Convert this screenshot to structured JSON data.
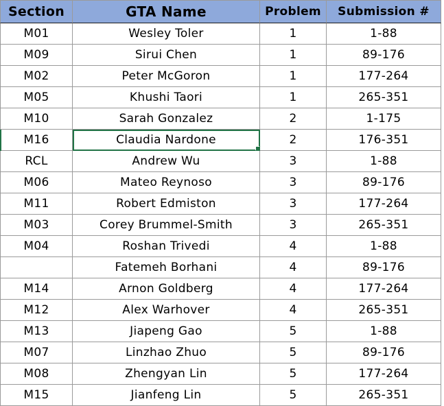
{
  "columns": {
    "section": "Section",
    "gta_name": "GTA Name",
    "problem": "Problem",
    "submission": "Submission #"
  },
  "rows": [
    {
      "section": "M01",
      "gta_name": "Wesley Toler",
      "problem": "1",
      "submission": "1-88"
    },
    {
      "section": "M09",
      "gta_name": "Sirui Chen",
      "problem": "1",
      "submission": "89-176"
    },
    {
      "section": "M02",
      "gta_name": "Peter McGoron",
      "problem": "1",
      "submission": "177-264"
    },
    {
      "section": "M05",
      "gta_name": "Khushi Taori",
      "problem": "1",
      "submission": "265-351"
    },
    {
      "section": "M10",
      "gta_name": "Sarah Gonzalez",
      "problem": "2",
      "submission": "1-175"
    },
    {
      "section": "M16",
      "gta_name": "Claudia Nardone",
      "problem": "2",
      "submission": "176-351"
    },
    {
      "section": "RCL",
      "gta_name": "Andrew Wu",
      "problem": "3",
      "submission": "1-88"
    },
    {
      "section": "M06",
      "gta_name": "Mateo Reynoso",
      "problem": "3",
      "submission": "89-176"
    },
    {
      "section": "M11",
      "gta_name": "Robert Edmiston",
      "problem": "3",
      "submission": "177-264"
    },
    {
      "section": "M03",
      "gta_name": "Corey Brummel-Smith",
      "problem": "3",
      "submission": "265-351"
    },
    {
      "section": "M04",
      "gta_name": "Roshan Trivedi",
      "problem": "4",
      "submission": "1-88"
    },
    {
      "section": "",
      "gta_name": "Fatemeh Borhani",
      "problem": "4",
      "submission": "89-176"
    },
    {
      "section": "M14",
      "gta_name": "Arnon Goldberg",
      "problem": "4",
      "submission": "177-264"
    },
    {
      "section": "M12",
      "gta_name": "Alex Warhover",
      "problem": "4",
      "submission": "265-351"
    },
    {
      "section": "M13",
      "gta_name": "Jiapeng Gao",
      "problem": "5",
      "submission": "1-88"
    },
    {
      "section": "M07",
      "gta_name": "Linzhao Zhuo",
      "problem": "5",
      "submission": "89-176"
    },
    {
      "section": "M08",
      "gta_name": "Zhengyan Lin",
      "problem": "5",
      "submission": "177-264"
    },
    {
      "section": "M15",
      "gta_name": "Jianfeng Lin",
      "problem": "5",
      "submission": "265-351"
    }
  ],
  "colors": {
    "header_fill": "#8ea9db",
    "selection": "#217346",
    "gridline": "#9a9a9a"
  }
}
